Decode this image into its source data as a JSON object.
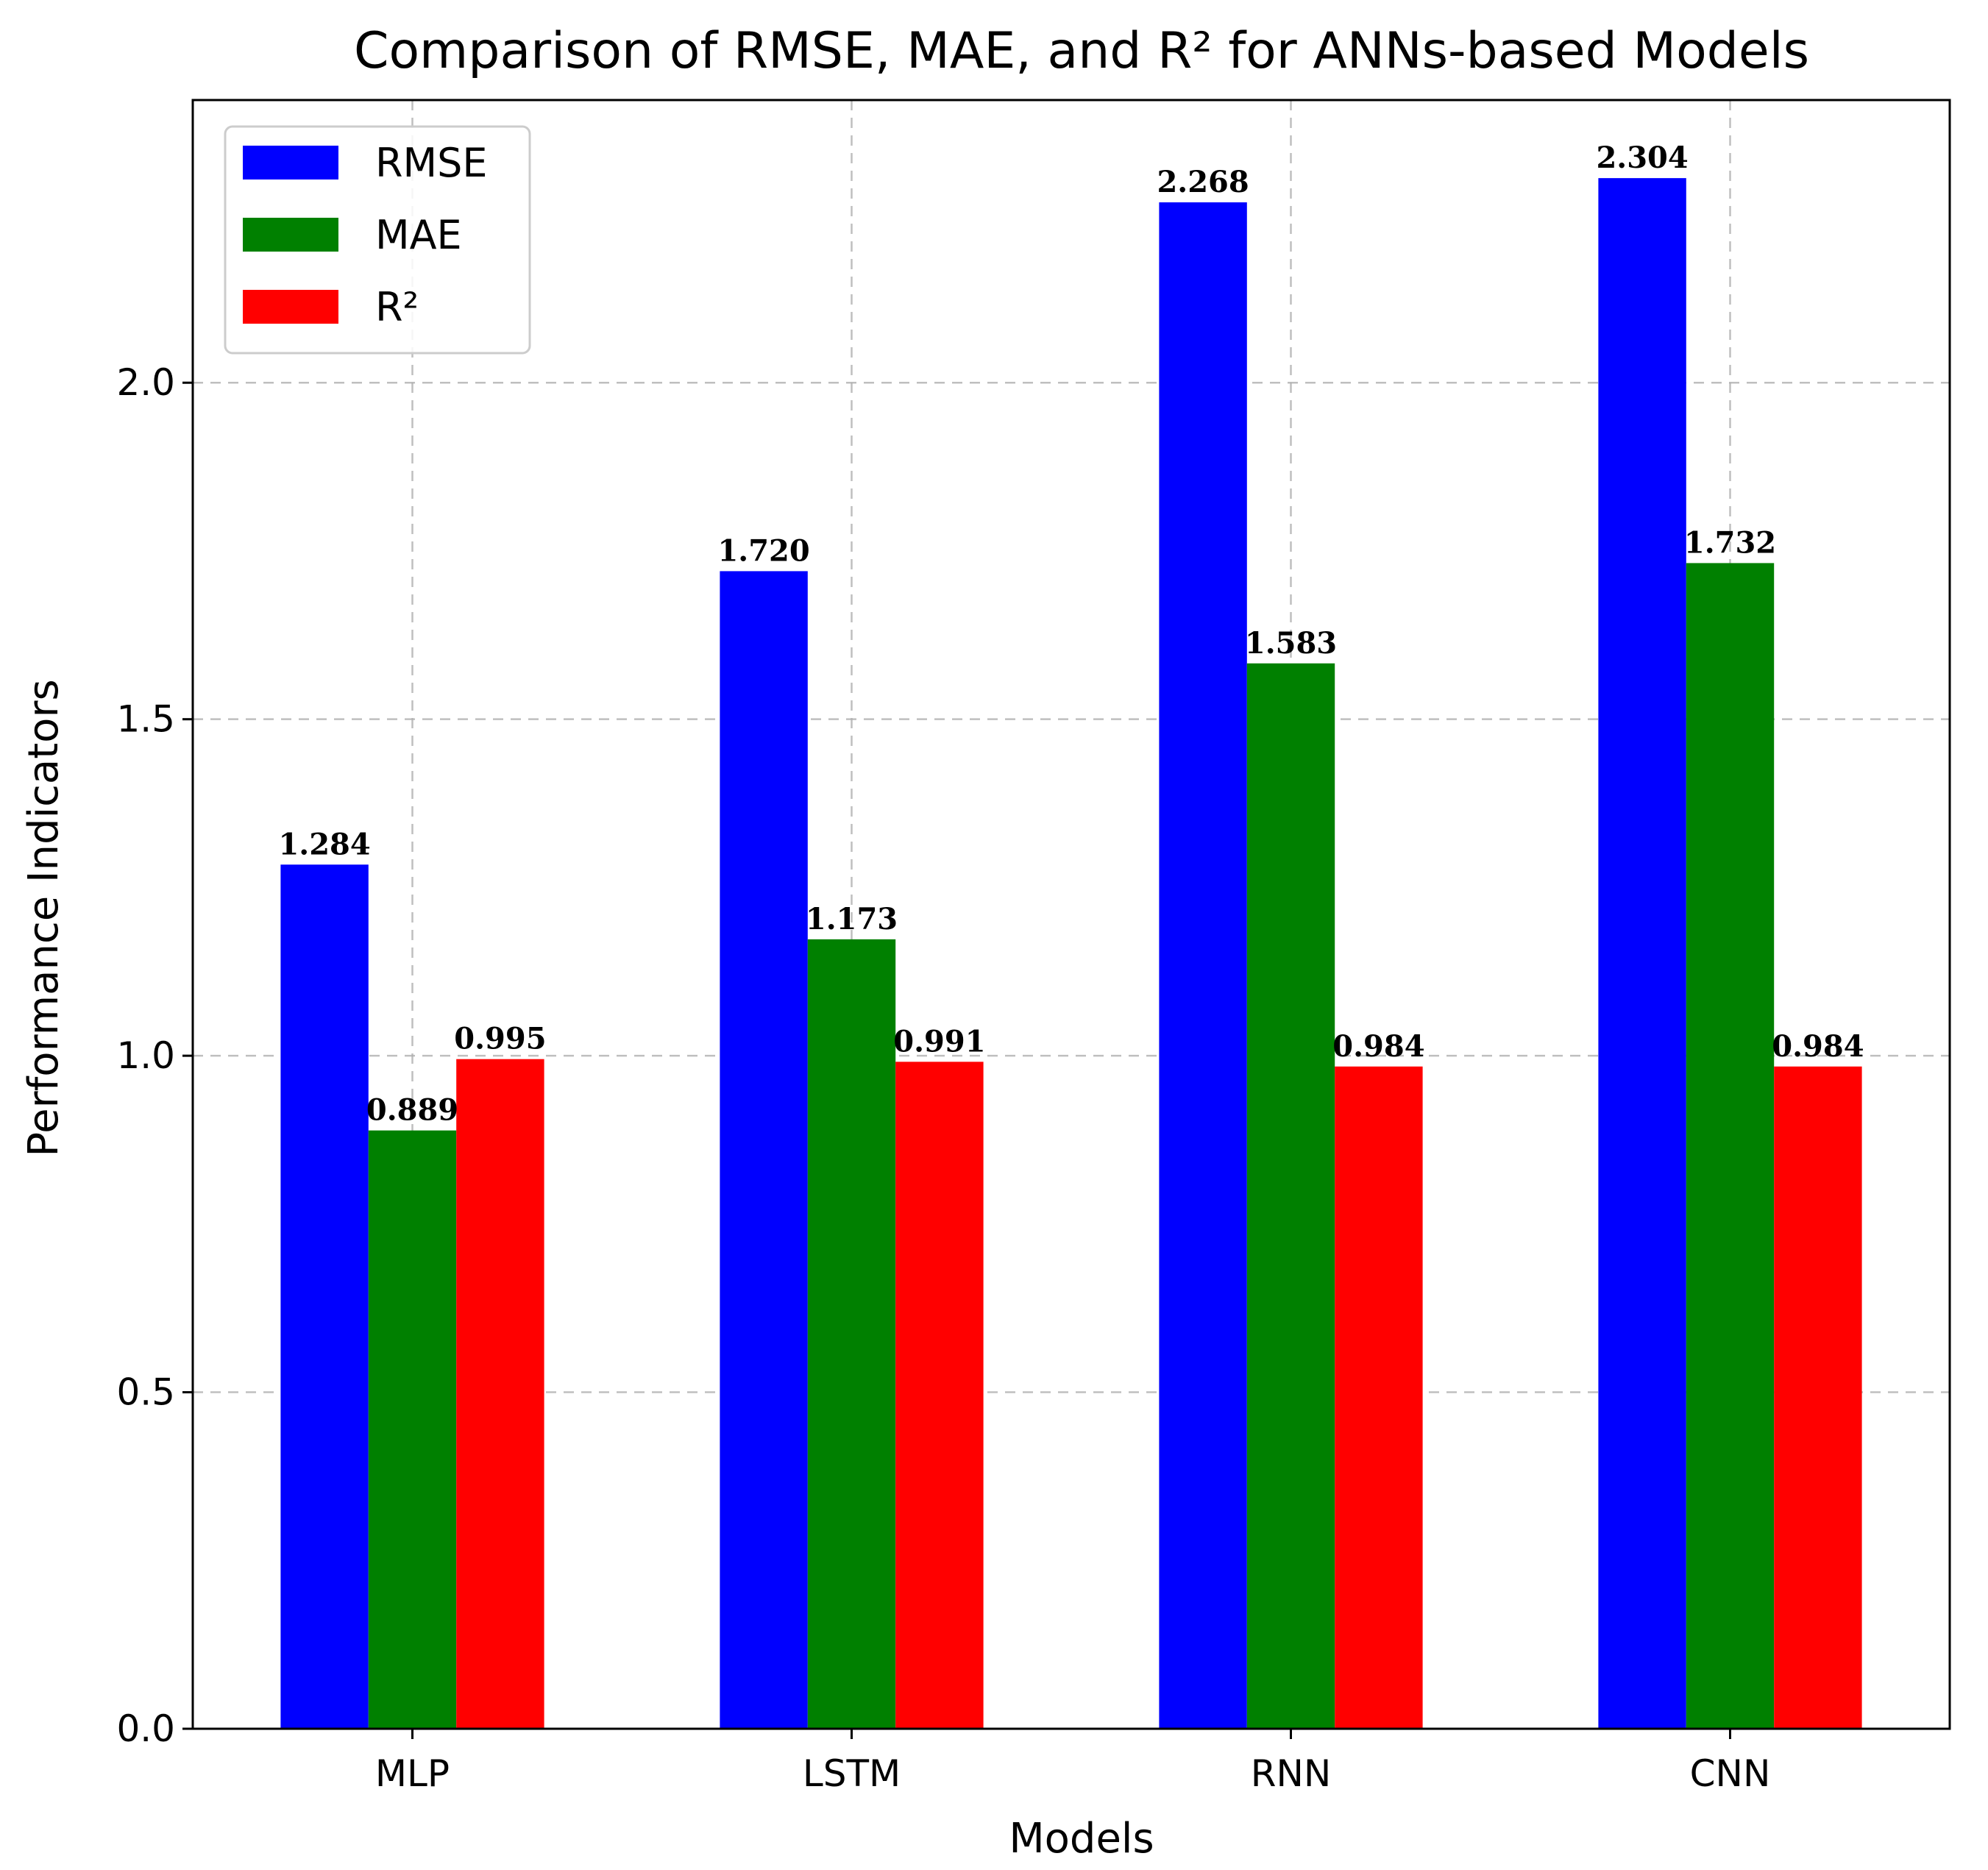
{
  "chart_data": {
    "type": "bar",
    "title": "Comparison of RMSE, MAE, and R² for ANNs-based Models",
    "xlabel": "Models",
    "ylabel": "Performance Indicators",
    "categories": [
      "MLP",
      "LSTM",
      "RNN",
      "CNN"
    ],
    "series": [
      {
        "name": "RMSE",
        "color": "#0000ff",
        "values": [
          1.284,
          1.72,
          2.268,
          2.304
        ],
        "labels": [
          "1.284",
          "1.720",
          "2.268",
          "2.304"
        ]
      },
      {
        "name": "MAE",
        "color": "#008000",
        "values": [
          0.889,
          1.173,
          1.583,
          1.732
        ],
        "labels": [
          "0.889",
          "1.173",
          "1.583",
          "1.732"
        ]
      },
      {
        "name": "R²",
        "color": "#ff0000",
        "values": [
          0.995,
          0.991,
          0.984,
          0.984
        ],
        "labels": [
          "0.995",
          "0.991",
          "0.984",
          "0.984"
        ]
      }
    ],
    "ylim": [
      0,
      2.42
    ],
    "yticks": [
      0.0,
      0.5,
      1.0,
      1.5,
      2.0
    ],
    "ytick_labels": [
      "0.0",
      "0.5",
      "1.0",
      "1.5",
      "2.0"
    ],
    "grid": true,
    "legend_position": "top-left"
  }
}
